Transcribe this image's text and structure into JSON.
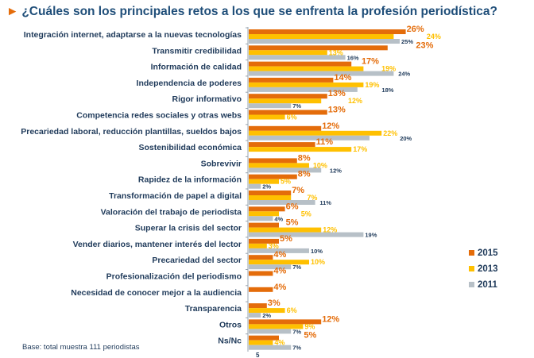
{
  "title": "¿Cuáles son los principales retos a los que se enfrenta la profesión periodística?",
  "footnote": "Base: total muestra 111 periodistas",
  "page_number": "5",
  "chart_data": {
    "type": "bar",
    "orientation": "horizontal",
    "title": "¿Cuáles son los principales retos a los que se enfrenta la profesión periodística?",
    "unit": "%",
    "legend_position": "right",
    "grid": false,
    "categories": [
      "Integración internet, adaptarse a la nuevas tecnologías",
      "Transmitir credibilidad",
      "Información de calidad",
      "Independencia de poderes",
      "Rigor informativo",
      "Competencia redes sociales y otras webs",
      "Precariedad laboral, reducción plantillas, sueldos bajos",
      "Sostenibilidad económica",
      "Sobrevivir",
      "Rapidez de la información",
      "Transformación de papel a digital",
      "Valoración del trabajo de periodista",
      "Superar la crisis del sector",
      "Vender diarios, mantener interés del lector",
      "Precariedad del sector",
      "Profesionalización del periodismo",
      "Necesidad de conocer mejor a la audiencia",
      "Transparencia",
      "Otros",
      "Ns/Nc"
    ],
    "series": [
      {
        "name": "2015",
        "color": "#e46c0a",
        "values": [
          26,
          23,
          17,
          14,
          13,
          13,
          12,
          11,
          8,
          8,
          7,
          6,
          5,
          5,
          4,
          4,
          4,
          3,
          12,
          5
        ]
      },
      {
        "name": "2013",
        "color": "#ffc000",
        "values": [
          24,
          13,
          19,
          19,
          12,
          6,
          22,
          17,
          10,
          5,
          7,
          5,
          12,
          3,
          10,
          null,
          null,
          6,
          9,
          4
        ]
      },
      {
        "name": "2011",
        "color": "#b7c0c7",
        "values": [
          25,
          16,
          24,
          18,
          7,
          null,
          20,
          null,
          12,
          2,
          11,
          4,
          19,
          10,
          7,
          null,
          null,
          2,
          7,
          7
        ]
      }
    ]
  }
}
